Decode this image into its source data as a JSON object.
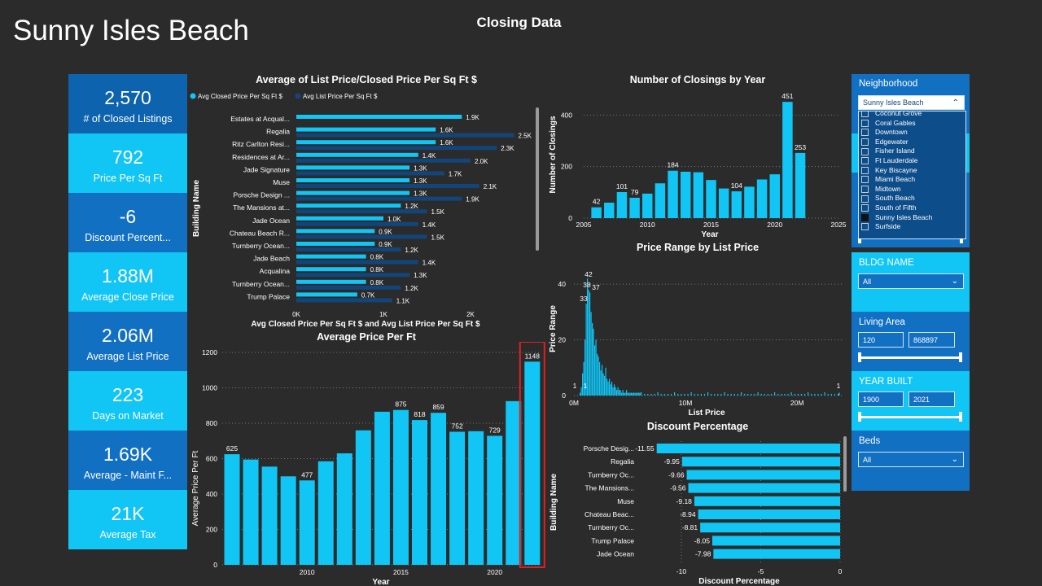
{
  "page_title": "Sunny Isles Beach",
  "header": "Closing Data",
  "kpis": [
    {
      "value": "2,570",
      "label": "# of Closed Listings"
    },
    {
      "value": "792",
      "label": "Price Per Sq Ft"
    },
    {
      "value": "-6",
      "label": "Discount Percent..."
    },
    {
      "value": "1.88M",
      "label": "Average Close Price"
    },
    {
      "value": "2.06M",
      "label": "Average List Price"
    },
    {
      "value": "223",
      "label": "Days on Market"
    },
    {
      "value": "1.69K",
      "label": "Average - Maint F..."
    },
    {
      "value": "21K",
      "label": "Average Tax"
    }
  ],
  "filters": {
    "neighborhood": {
      "label": "Neighborhood",
      "selected": "Sunny Isles Beach",
      "options": [
        "Coconut Grove",
        "Coral Gables",
        "Downtown",
        "Edgewater",
        "Fisher Island",
        "Ft Lauderdale",
        "Key Biscayne",
        "Miami Beach",
        "Midtown",
        "South Beach",
        "South of Fifth",
        "Sunny Isles Beach",
        "Surfside"
      ],
      "checked": "Sunny Isles Beach"
    },
    "bldg_name": {
      "label": "BLDG NAME",
      "value": "All"
    },
    "living_area": {
      "label": "Living Area",
      "min": "120",
      "max": "868897"
    },
    "year_built": {
      "label": "YEAR BUILT",
      "min": "1900",
      "max": "2021"
    },
    "beds": {
      "label": "Beds",
      "value": "All"
    }
  },
  "colors": {
    "closed": "#11c5f5",
    "list": "#12467a",
    "accent_dark": "#1270c3",
    "highlight": "#e02020"
  },
  "chart_data": [
    {
      "type": "bar",
      "orientation": "horizontal",
      "title": "Average of List Price/Closed Price Per Sq Ft $",
      "xlabel": "Avg Closed Price Per Sq Ft $ and Avg List Price Per Sq Ft $",
      "ylabel": "Building Name",
      "x_ticks": [
        "0K",
        "1K",
        "2K"
      ],
      "xlim": [
        0,
        2.8
      ],
      "categories": [
        "Estates at Acqual...",
        "Regalia",
        "Ritz Carlton Resi...",
        "Residences at Ar...",
        "Jade Signature",
        "Muse",
        "Porsche Design ...",
        "The Mansions at...",
        "Jade Ocean",
        "Chateau Beach R...",
        "Turnberry Ocean...",
        "Jade Beach",
        "Acqualina",
        "Turnberry Ocean...",
        "Trump Palace"
      ],
      "series": [
        {
          "name": "Avg Closed Price Per Sq Ft $",
          "values": [
            1.9,
            1.6,
            1.6,
            1.4,
            1.3,
            1.3,
            1.3,
            1.2,
            1.0,
            0.9,
            0.9,
            0.8,
            0.8,
            0.8,
            0.7
          ],
          "labels": [
            "1.9K",
            "1.6K",
            "1.6K",
            "1.4K",
            "1.3K",
            "1.3K",
            "1.3K",
            "1.2K",
            "1.0K",
            "0.9K",
            "0.9K",
            "0.8K",
            "0.8K",
            "0.8K",
            "0.7K"
          ]
        },
        {
          "name": "Avg List Price Per Sq Ft $",
          "values": [
            null,
            2.5,
            2.3,
            2.0,
            1.7,
            2.1,
            1.9,
            1.5,
            1.4,
            1.5,
            1.2,
            1.4,
            1.3,
            1.2,
            1.1
          ],
          "labels": [
            "",
            "2.5K",
            "2.3K",
            "2.0K",
            "1.7K",
            "2.1K",
            "1.9K",
            "1.5K",
            "1.4K",
            "1.5K",
            "1.2K",
            "1.4K",
            "1.3K",
            "1.2K",
            "1.1K"
          ]
        }
      ]
    },
    {
      "type": "bar",
      "title": "Number of Closings by Year",
      "xlabel": "Year",
      "ylabel": "Number of Closings",
      "x": [
        2006,
        2007,
        2008,
        2009,
        2010,
        2011,
        2012,
        2013,
        2014,
        2015,
        2016,
        2017,
        2018,
        2019,
        2020,
        2021,
        2022
      ],
      "values": [
        42,
        60,
        101,
        79,
        95,
        135,
        184,
        180,
        178,
        148,
        115,
        104,
        122,
        150,
        170,
        451,
        253
      ],
      "data_labels": {
        "2006": "42",
        "2008": "101",
        "2009": "79",
        "2012": "184",
        "2017": "104",
        "2021": "451",
        "2022": "253"
      },
      "x_ticks": [
        2005,
        2010,
        2015,
        2020,
        2025
      ],
      "y_ticks": [
        0,
        200,
        400
      ],
      "xlim": [
        2005,
        2025
      ],
      "ylim": [
        0,
        480
      ]
    },
    {
      "type": "bar",
      "title": "Average Price Per Ft",
      "xlabel": "Year",
      "ylabel": "Average Price Per Ft",
      "x": [
        2006,
        2007,
        2008,
        2009,
        2010,
        2011,
        2012,
        2013,
        2014,
        2015,
        2016,
        2017,
        2018,
        2019,
        2020,
        2021,
        2022
      ],
      "values": [
        625,
        595,
        555,
        500,
        477,
        585,
        630,
        760,
        865,
        875,
        818,
        859,
        752,
        755,
        729,
        925,
        1148
      ],
      "data_labels": {
        "2006": "625",
        "2010": "477",
        "2015": "875",
        "2016": "818",
        "2017": "859",
        "2018": "752",
        "2020": "729",
        "2022": "1148"
      },
      "x_ticks": [
        2010,
        2015,
        2020
      ],
      "y_ticks": [
        0,
        200,
        400,
        600,
        800,
        1000,
        1200
      ],
      "ylim": [
        0,
        1260
      ],
      "highlighted": 2022
    },
    {
      "type": "bar",
      "title": "Price Range by List Price",
      "xlabel": "List Price",
      "ylabel": "Price Range",
      "x_ticks": [
        "0M",
        "10M",
        "20M"
      ],
      "y_ticks": [
        0,
        20,
        40
      ],
      "xlim": [
        0,
        24
      ],
      "ylim": [
        0,
        45
      ],
      "data_labels": [
        "42",
        "38",
        "37",
        "33",
        "1",
        "1",
        "1"
      ]
    },
    {
      "type": "bar",
      "orientation": "horizontal",
      "title": "Discount Percentage",
      "xlabel": "Discount Percentage",
      "ylabel": "Building Name",
      "categories": [
        "Porsche Desig...",
        "Regalia",
        "Turnberry Oc...",
        "The Mansions...",
        "Muse",
        "Chateau Beac...",
        "Turnberry Oc...",
        "Trump Palace",
        "Jade Ocean"
      ],
      "values": [
        -11.55,
        -9.95,
        -9.66,
        -9.56,
        -9.18,
        -8.94,
        -8.81,
        -8.05,
        -7.98
      ],
      "labels": [
        "-11.55",
        "-9.95",
        "-9.66",
        "-9.56",
        "-9.18",
        "-8.94",
        "-8.81",
        "-8.05",
        "-7.98"
      ],
      "x_ticks": [
        -10,
        -5,
        0
      ],
      "xlim": [
        -12.2,
        0
      ]
    }
  ]
}
